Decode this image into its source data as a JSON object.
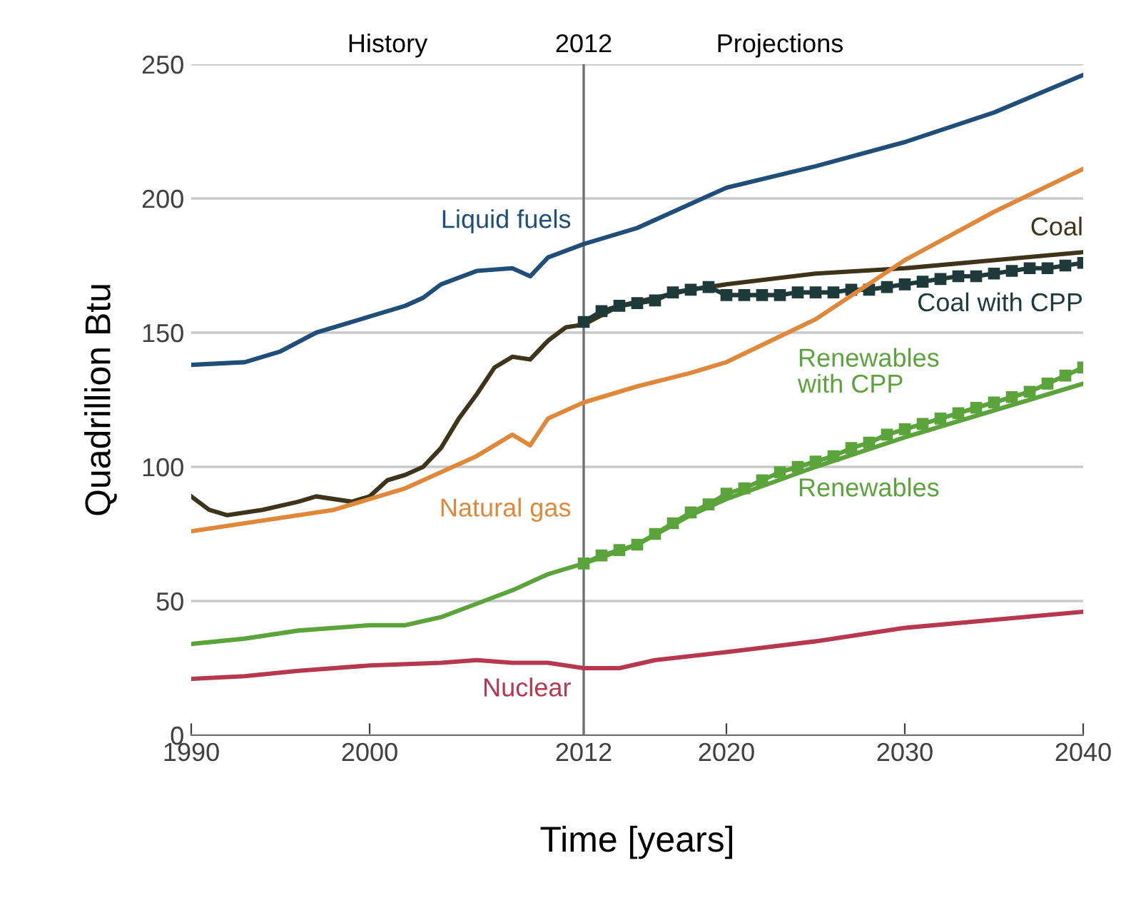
{
  "chart_data": {
    "type": "line",
    "xlabel": "Time [years]",
    "ylabel": "Quadrillion Btu",
    "xlim": [
      1990,
      2040
    ],
    "xticks": [
      1990,
      2000,
      2012,
      2020,
      2030,
      2040
    ],
    "ylim": [
      0,
      250
    ],
    "yticks": [
      0,
      50,
      100,
      150,
      200,
      250
    ],
    "grid": "y",
    "legend": false,
    "ref_lines": [
      {
        "axis": "x",
        "value": 2012,
        "label": "2012",
        "color": "#707070"
      }
    ],
    "annotations": [
      "History",
      "Projections"
    ],
    "series": [
      {
        "name": "Liquid fuels",
        "color": "#1f4e79",
        "marker": "none",
        "x": [
          1990,
          1993,
          1995,
          1997,
          2000,
          2002,
          2003,
          2004,
          2006,
          2008,
          2009,
          2010,
          2012,
          2015,
          2020,
          2025,
          2030,
          2035,
          2040
        ],
        "values": [
          138,
          139,
          143,
          150,
          156,
          160,
          163,
          168,
          173,
          174,
          171,
          178,
          183,
          189,
          204,
          212,
          221,
          232,
          246
        ]
      },
      {
        "name": "Coal",
        "color": "#3d3419",
        "marker": "none",
        "x": [
          1990,
          1991,
          1992,
          1994,
          1996,
          1997,
          1999,
          2000,
          2001,
          2002,
          2003,
          2004,
          2005,
          2006,
          2007,
          2008,
          2009,
          2010,
          2011,
          2012,
          2014,
          2016,
          2018,
          2020,
          2025,
          2030,
          2035,
          2040
        ],
        "values": [
          89,
          84,
          82,
          84,
          87,
          89,
          87,
          89,
          95,
          97,
          100,
          107,
          118,
          127,
          137,
          141,
          140,
          147,
          152,
          153,
          160,
          163,
          166,
          168,
          172,
          174,
          177,
          180
        ]
      },
      {
        "name": "Coal with CPP",
        "color": "#1f3a3a",
        "marker": "square",
        "x": [
          2012,
          2013,
          2014,
          2015,
          2016,
          2017,
          2018,
          2019,
          2020,
          2021,
          2022,
          2023,
          2024,
          2025,
          2026,
          2027,
          2028,
          2029,
          2030,
          2031,
          2032,
          2033,
          2034,
          2035,
          2036,
          2037,
          2038,
          2039,
          2040
        ],
        "values": [
          154,
          158,
          160,
          161,
          162,
          165,
          166,
          167,
          164,
          164,
          164,
          164,
          165,
          165,
          165,
          166,
          166,
          167,
          168,
          169,
          170,
          171,
          171,
          172,
          173,
          174,
          174,
          175,
          176
        ]
      },
      {
        "name": "Natural gas",
        "color": "#e0883a",
        "marker": "none",
        "x": [
          1990,
          1992,
          1995,
          1998,
          2000,
          2002,
          2004,
          2006,
          2008,
          2009,
          2010,
          2012,
          2015,
          2018,
          2020,
          2025,
          2030,
          2035,
          2040
        ],
        "values": [
          76,
          78,
          81,
          84,
          88,
          92,
          98,
          104,
          112,
          108,
          118,
          124,
          130,
          135,
          139,
          155,
          177,
          195,
          211
        ]
      },
      {
        "name": "Renewables",
        "color": "#5ba33b",
        "marker": "none",
        "x": [
          1990,
          1993,
          1996,
          2000,
          2002,
          2004,
          2006,
          2008,
          2010,
          2012,
          2015,
          2018,
          2020,
          2025,
          2030,
          2035,
          2040
        ],
        "values": [
          34,
          36,
          39,
          41,
          41,
          44,
          49,
          54,
          60,
          64,
          71,
          82,
          88,
          100,
          111,
          121,
          131
        ]
      },
      {
        "name": "Renewables\nwith CPP",
        "color": "#5ba33b",
        "marker": "square",
        "x": [
          2012,
          2013,
          2014,
          2015,
          2016,
          2017,
          2018,
          2019,
          2020,
          2021,
          2022,
          2023,
          2024,
          2025,
          2026,
          2027,
          2028,
          2029,
          2030,
          2031,
          2032,
          2033,
          2034,
          2035,
          2036,
          2037,
          2038,
          2039,
          2040
        ],
        "values": [
          64,
          67,
          69,
          71,
          75,
          79,
          83,
          86,
          90,
          92,
          95,
          98,
          100,
          102,
          104,
          107,
          109,
          112,
          114,
          116,
          118,
          120,
          122,
          124,
          126,
          128,
          131,
          134,
          137
        ]
      },
      {
        "name": "Nuclear",
        "color": "#b5384f",
        "marker": "none",
        "x": [
          1990,
          1993,
          1996,
          2000,
          2004,
          2006,
          2008,
          2010,
          2012,
          2014,
          2016,
          2020,
          2025,
          2030,
          2035,
          2040
        ],
        "values": [
          21,
          22,
          24,
          26,
          27,
          28,
          27,
          27,
          25,
          25,
          28,
          31,
          35,
          40,
          43,
          46
        ]
      }
    ]
  }
}
